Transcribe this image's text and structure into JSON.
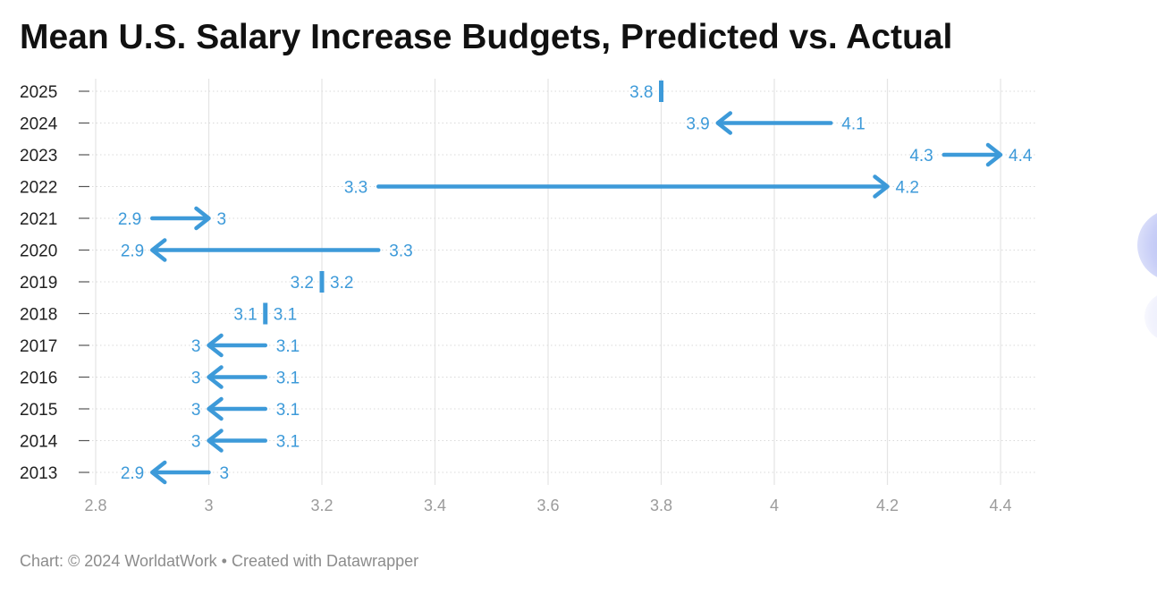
{
  "title": "Mean U.S. Salary Increase Budgets, Predicted vs. Actual",
  "footer": "Chart: © 2024 WorldatWork • Created with Datawrapper",
  "colors": {
    "series": "#3d9ad9",
    "grid": "#e4e4e4",
    "tick_text": "#9b9b9b",
    "year_text": "#222222"
  },
  "chart_data": {
    "type": "arrow",
    "xlim": [
      2.8,
      4.4
    ],
    "x_ticks": [
      "2.8",
      "3",
      "3.2",
      "3.4",
      "3.6",
      "3.8",
      "4",
      "4.2",
      "4.4"
    ],
    "grid": true,
    "rows": [
      {
        "year": "2025",
        "start": 3.8,
        "end": 3.8,
        "start_label": "3.8",
        "end_label": ""
      },
      {
        "year": "2024",
        "start": 4.1,
        "end": 3.9,
        "start_label": "4.1",
        "end_label": "3.9"
      },
      {
        "year": "2023",
        "start": 4.3,
        "end": 4.4,
        "start_label": "4.3",
        "end_label": "4.4"
      },
      {
        "year": "2022",
        "start": 3.3,
        "end": 4.2,
        "start_label": "3.3",
        "end_label": "4.2"
      },
      {
        "year": "2021",
        "start": 2.9,
        "end": 3.0,
        "start_label": "2.9",
        "end_label": "3"
      },
      {
        "year": "2020",
        "start": 3.3,
        "end": 2.9,
        "start_label": "3.3",
        "end_label": "2.9"
      },
      {
        "year": "2019",
        "start": 3.2,
        "end": 3.2,
        "start_label": "3.2",
        "end_label": "3.2"
      },
      {
        "year": "2018",
        "start": 3.1,
        "end": 3.1,
        "start_label": "3.1",
        "end_label": "3.1"
      },
      {
        "year": "2017",
        "start": 3.1,
        "end": 3.0,
        "start_label": "3.1",
        "end_label": "3"
      },
      {
        "year": "2016",
        "start": 3.1,
        "end": 3.0,
        "start_label": "3.1",
        "end_label": "3"
      },
      {
        "year": "2015",
        "start": 3.1,
        "end": 3.0,
        "start_label": "3.1",
        "end_label": "3"
      },
      {
        "year": "2014",
        "start": 3.1,
        "end": 3.0,
        "start_label": "3.1",
        "end_label": "3"
      },
      {
        "year": "2013",
        "start": 3.0,
        "end": 2.9,
        "start_label": "3",
        "end_label": "2.9"
      }
    ]
  }
}
